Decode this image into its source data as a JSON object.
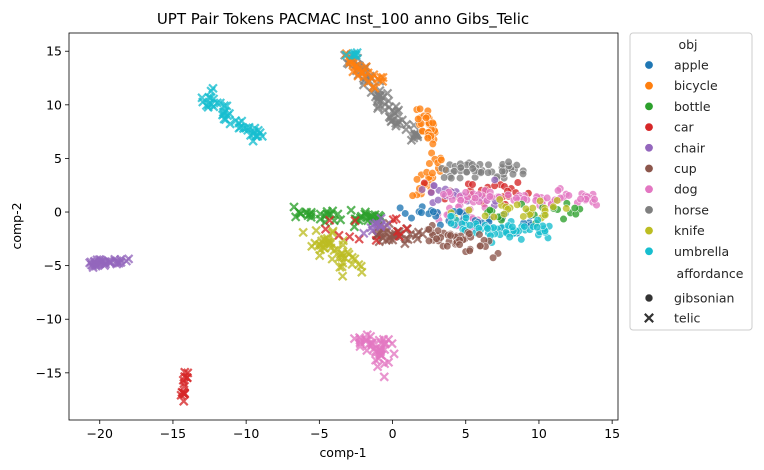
{
  "chart_data": {
    "type": "scatter",
    "title": "UPT Pair Tokens PACMAC Inst_100 anno Gibs_Telic",
    "xlabel": "comp-1",
    "ylabel": "comp-2",
    "xlim": [
      -22.1,
      15.4
    ],
    "ylim": [
      -19.4,
      16.7
    ],
    "xticks": [
      -20,
      -15,
      -10,
      -5,
      0,
      5,
      10,
      15
    ],
    "yticks": [
      -15,
      -10,
      -5,
      0,
      5,
      10,
      15
    ],
    "grid": false,
    "legend_placement": "outside right",
    "legend": {
      "hue_title": "obj",
      "style_title": "affordance",
      "objects": [
        {
          "name": "apple",
          "color": "#1f77b4"
        },
        {
          "name": "bicycle",
          "color": "#ff7f0e"
        },
        {
          "name": "bottle",
          "color": "#2ca02c"
        },
        {
          "name": "car",
          "color": "#d62728"
        },
        {
          "name": "chair",
          "color": "#9467bd"
        },
        {
          "name": "cup",
          "color": "#8c564b"
        },
        {
          "name": "dog",
          "color": "#e377c2"
        },
        {
          "name": "horse",
          "color": "#7f7f7f"
        },
        {
          "name": "knife",
          "color": "#bcbd22"
        },
        {
          "name": "umbrella",
          "color": "#17becf"
        }
      ],
      "affordances": [
        {
          "name": "gibsonian",
          "marker": "circle"
        },
        {
          "name": "telic",
          "marker": "x"
        }
      ]
    },
    "clusters": [
      {
        "obj": "horse",
        "aff": "telic",
        "path": [
          [
            -3.6,
            14.9
          ],
          [
            -2.4,
            13.8
          ],
          [
            -1.0,
            11.2
          ],
          [
            0.6,
            8.0
          ],
          [
            1.8,
            6.8
          ]
        ],
        "count": 70,
        "spread": 0.35
      },
      {
        "obj": "bicycle",
        "aff": "telic",
        "path": [
          [
            -3.4,
            14.6
          ],
          [
            -2.2,
            13.2
          ],
          [
            -0.6,
            11.5
          ]
        ],
        "count": 25,
        "spread": 0.3
      },
      {
        "obj": "bicycle",
        "aff": "gibsonian",
        "path": [
          [
            1.8,
            9.6
          ],
          [
            2.4,
            8.2
          ],
          [
            2.7,
            6.6
          ]
        ],
        "count": 30,
        "spread": 0.3
      },
      {
        "obj": "umbrella",
        "aff": "telic",
        "path": [
          [
            -3.1,
            14.8
          ],
          [
            -2.2,
            14.8
          ]
        ],
        "count": 6,
        "spread": 0.2
      },
      {
        "obj": "umbrella",
        "aff": "telic",
        "path": [
          [
            -12.6,
            11.0
          ],
          [
            -11.3,
            8.8
          ],
          [
            -10.2,
            7.7
          ],
          [
            -8.9,
            7.1
          ]
        ],
        "count": 45,
        "spread": 0.3
      },
      {
        "obj": "bicycle",
        "aff": "gibsonian",
        "path": [
          [
            3.3,
            5.2
          ],
          [
            2.8,
            3.2
          ],
          [
            2.0,
            1.6
          ]
        ],
        "count": 25,
        "spread": 0.35
      },
      {
        "obj": "horse",
        "aff": "gibsonian",
        "path": [
          [
            3.5,
            3.9
          ],
          [
            6.0,
            3.9
          ],
          [
            8.7,
            4.0
          ]
        ],
        "count": 50,
        "spread": 0.4
      },
      {
        "obj": "car",
        "aff": "gibsonian",
        "path": [
          [
            3.0,
            2.2
          ],
          [
            6.0,
            2.0
          ],
          [
            9.0,
            1.6
          ]
        ],
        "count": 30,
        "spread": 0.5
      },
      {
        "obj": "chair",
        "aff": "gibsonian",
        "path": [
          [
            2.0,
            2.0
          ],
          [
            4.5,
            1.8
          ],
          [
            7.0,
            1.4
          ]
        ],
        "count": 25,
        "spread": 0.5
      },
      {
        "obj": "dog",
        "aff": "gibsonian",
        "path": [
          [
            3.5,
            1.5
          ],
          [
            7.0,
            1.3
          ],
          [
            10.5,
            1.1
          ],
          [
            13.9,
            1.2
          ]
        ],
        "count": 70,
        "spread": 0.35
      },
      {
        "obj": "dog",
        "aff": "gibsonian",
        "path": [
          [
            3.0,
            -0.2
          ],
          [
            6.0,
            -0.6
          ]
        ],
        "count": 25,
        "spread": 0.5
      },
      {
        "obj": "apple",
        "aff": "gibsonian",
        "path": [
          [
            1.5,
            -0.3
          ],
          [
            5.5,
            -0.8
          ],
          [
            9.5,
            -1.2
          ]
        ],
        "count": 35,
        "spread": 0.6
      },
      {
        "obj": "bottle",
        "aff": "gibsonian",
        "path": [
          [
            6.5,
            -0.2
          ],
          [
            9.5,
            0.0
          ],
          [
            12.5,
            0.2
          ]
        ],
        "count": 20,
        "spread": 0.5
      },
      {
        "obj": "knife",
        "aff": "gibsonian",
        "path": [
          [
            4.0,
            -0.5
          ],
          [
            7.5,
            0.2
          ],
          [
            11.0,
            0.4
          ]
        ],
        "count": 25,
        "spread": 0.5
      },
      {
        "obj": "umbrella",
        "aff": "gibsonian",
        "path": [
          [
            4.0,
            -0.8
          ],
          [
            7.0,
            -1.6
          ],
          [
            10.5,
            -1.6
          ]
        ],
        "count": 60,
        "spread": 0.45
      },
      {
        "obj": "cup",
        "aff": "gibsonian",
        "path": [
          [
            2.0,
            -2.0
          ],
          [
            4.5,
            -2.5
          ],
          [
            6.5,
            -3.0
          ]
        ],
        "count": 45,
        "spread": 0.45
      },
      {
        "obj": "bottle",
        "aff": "telic",
        "path": [
          [
            -7.0,
            -0.2
          ],
          [
            -4.0,
            -0.5
          ],
          [
            -1.0,
            -0.6
          ]
        ],
        "count": 45,
        "spread": 0.3
      },
      {
        "obj": "knife",
        "aff": "telic",
        "path": [
          [
            -5.0,
            -2.0
          ],
          [
            -4.0,
            -3.5
          ],
          [
            -3.0,
            -5.0
          ]
        ],
        "count": 45,
        "spread": 0.55
      },
      {
        "obj": "cup",
        "aff": "telic",
        "path": [
          [
            -1.5,
            -1.5
          ],
          [
            0.0,
            -2.5
          ],
          [
            1.5,
            -2.0
          ]
        ],
        "count": 35,
        "spread": 0.45
      },
      {
        "obj": "car",
        "aff": "telic",
        "path": [
          [
            -5.0,
            -1.5
          ],
          [
            -2.0,
            -2.0
          ],
          [
            1.0,
            -1.5
          ]
        ],
        "count": 12,
        "spread": 0.6
      },
      {
        "obj": "chair",
        "aff": "telic",
        "path": [
          [
            -2.5,
            -1.5
          ],
          [
            0.0,
            -1.2
          ]
        ],
        "count": 10,
        "spread": 0.5
      },
      {
        "obj": "chair",
        "aff": "telic",
        "path": [
          [
            -20.6,
            -4.9
          ],
          [
            -19.3,
            -4.6
          ],
          [
            -18.1,
            -4.5
          ]
        ],
        "count": 35,
        "spread": 0.2
      },
      {
        "obj": "dog",
        "aff": "telic",
        "path": [
          [
            -1.8,
            -11.6
          ],
          [
            -1.0,
            -13.0
          ],
          [
            -0.6,
            -14.2
          ]
        ],
        "count": 40,
        "spread": 0.55
      },
      {
        "obj": "car",
        "aff": "telic",
        "path": [
          [
            -14.5,
            -17.8
          ],
          [
            -14.2,
            -16.0
          ],
          [
            -14.0,
            -14.8
          ]
        ],
        "count": 15,
        "spread": 0.15
      }
    ]
  }
}
